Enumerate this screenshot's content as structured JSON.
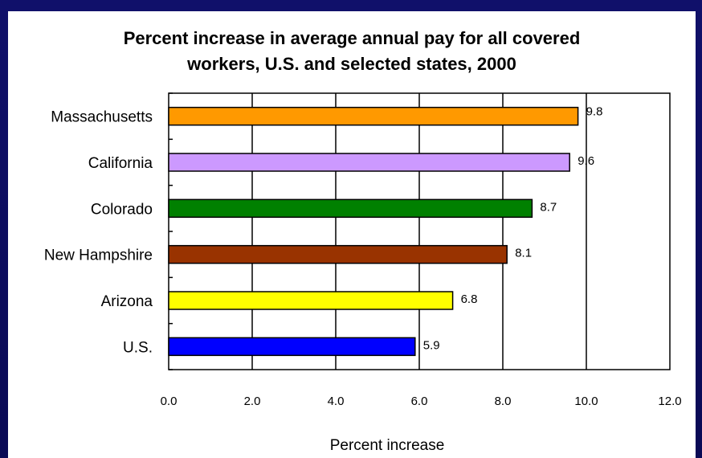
{
  "chart_data": {
    "type": "bar",
    "orientation": "horizontal",
    "title": "Percent increase in average annual pay for all covered workers, U.S. and selected states, 2000",
    "title_lines": [
      "Percent increase in average annual pay for all covered",
      "workers, U.S. and selected states, 2000"
    ],
    "categories": [
      "Massachusetts",
      "California",
      "Colorado",
      "New Hampshire",
      "Arizona",
      "U.S."
    ],
    "values": [
      9.8,
      9.6,
      8.7,
      8.1,
      6.8,
      5.9
    ],
    "value_labels": [
      "9.8",
      "9.6",
      "8.7",
      "8.1",
      "6.8",
      "5.9"
    ],
    "bar_colors": [
      "#ff9900",
      "#cc99ff",
      "#008000",
      "#993300",
      "#ffff00",
      "#0000ff"
    ],
    "xlabel": "Percent increase",
    "ylabel": "",
    "xlim": [
      0,
      12
    ],
    "xticks": [
      "0.0",
      "2.0",
      "4.0",
      "6.0",
      "8.0",
      "10.0",
      "12.0"
    ],
    "grid": "vertical",
    "legend": "none"
  },
  "colors": {
    "background": "#0a0a5c",
    "panel": "#ffffff"
  }
}
